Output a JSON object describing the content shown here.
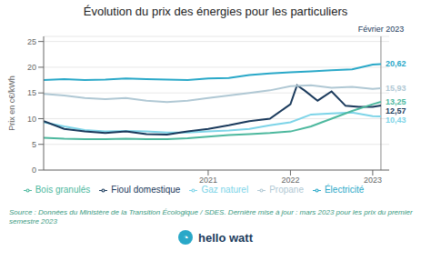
{
  "chart_data": {
    "type": "line",
    "title": "Évolution du prix des énergies pour les particuliers",
    "y_label": "Prix en c€/kWh",
    "source": "Source : Données du Ministère de la Transition Écologique / SDES. Dernière mise à jour : mars 2023 pour les prix du premier semestre 2023",
    "logo": [
      "◔",
      "hello watt"
    ],
    "annotations": [
      {
        "x": 2023.1,
        "label": "Février 2023"
      }
    ],
    "xlim": [
      2019.0,
      2023.2
    ],
    "xticks": [
      2021,
      2022,
      2023
    ],
    "ylim": [
      0,
      26
    ],
    "yticks": [
      0,
      5,
      10,
      15,
      20,
      25
    ],
    "grid": true,
    "legend": "bottom",
    "series": [
      {
        "name": "Gaz naturel",
        "color": "#7dd4e8",
        "x": [
          2019.0,
          2019.25,
          2019.5,
          2019.75,
          2020.0,
          2020.25,
          2020.5,
          2020.75,
          2021.0,
          2021.25,
          2021.5,
          2021.75,
          2022.0,
          2022.25,
          2022.5,
          2022.75,
          2023.0,
          2023.1
        ],
        "values": [
          9.3,
          8.5,
          7.8,
          7.5,
          7.6,
          7.5,
          7.3,
          7.3,
          7.5,
          7.7,
          8.0,
          8.7,
          9.3,
          10.8,
          11.0,
          11.2,
          10.5,
          10.43
        ],
        "value_labels": [
          null,
          null,
          null,
          null,
          null,
          null,
          null,
          null,
          null,
          null,
          null,
          null,
          null,
          null,
          null,
          null,
          null,
          "10,43"
        ]
      },
      {
        "name": "Électricité",
        "color": "#29a8c8",
        "x": [
          2019.0,
          2019.25,
          2019.5,
          2019.75,
          2020.0,
          2020.25,
          2020.5,
          2020.75,
          2021.0,
          2021.25,
          2021.5,
          2021.75,
          2022.0,
          2022.25,
          2022.5,
          2022.75,
          2023.0,
          2023.1
        ],
        "values": [
          17.5,
          17.7,
          17.5,
          17.6,
          17.8,
          17.7,
          17.6,
          17.5,
          17.8,
          17.9,
          18.5,
          18.8,
          19.0,
          19.2,
          19.4,
          19.6,
          20.5,
          20.62
        ],
        "value_labels": [
          null,
          null,
          null,
          null,
          null,
          null,
          null,
          null,
          null,
          null,
          null,
          null,
          null,
          null,
          null,
          null,
          null,
          "20,62"
        ]
      },
      {
        "name": "Fioul domestique",
        "color": "#1a3a5c",
        "x": [
          2019.0,
          2019.25,
          2019.5,
          2019.75,
          2020.0,
          2020.25,
          2020.5,
          2020.75,
          2021.0,
          2021.25,
          2021.5,
          2021.75,
          2022.0,
          2022.08,
          2022.17,
          2022.33,
          2022.5,
          2022.67,
          2022.83,
          2023.0,
          2023.1
        ],
        "values": [
          9.5,
          8.0,
          7.5,
          7.2,
          7.5,
          7.0,
          6.9,
          7.5,
          8.0,
          8.7,
          9.5,
          10.0,
          12.8,
          16.5,
          15.5,
          13.5,
          15.3,
          12.5,
          12.3,
          12.3,
          12.57
        ],
        "value_labels": [
          null,
          null,
          null,
          null,
          null,
          null,
          null,
          null,
          null,
          null,
          null,
          null,
          null,
          null,
          null,
          null,
          null,
          null,
          null,
          null,
          "12,57"
        ]
      },
      {
        "name": "Propane",
        "color": "#b0c8d4",
        "x": [
          2019.0,
          2019.25,
          2019.5,
          2019.75,
          2020.0,
          2020.25,
          2020.5,
          2020.75,
          2021.0,
          2021.25,
          2021.5,
          2021.75,
          2022.0,
          2022.25,
          2022.5,
          2022.75,
          2023.0,
          2023.1
        ],
        "values": [
          14.8,
          14.5,
          14.0,
          13.8,
          14.0,
          13.5,
          13.2,
          13.5,
          14.0,
          14.5,
          15.0,
          15.5,
          16.3,
          16.5,
          16.0,
          16.2,
          15.8,
          15.93
        ],
        "value_labels": [
          null,
          null,
          null,
          null,
          null,
          null,
          null,
          null,
          null,
          null,
          null,
          null,
          null,
          null,
          null,
          null,
          null,
          "15,93"
        ]
      },
      {
        "name": "Bois granulés",
        "color": "#4db89e",
        "x": [
          2019.0,
          2019.25,
          2019.5,
          2019.75,
          2020.0,
          2020.25,
          2020.5,
          2020.75,
          2021.0,
          2021.25,
          2021.5,
          2021.75,
          2022.0,
          2022.25,
          2022.5,
          2022.75,
          2023.0,
          2023.1
        ],
        "values": [
          6.3,
          6.1,
          6.0,
          6.0,
          6.1,
          6.0,
          6.0,
          6.2,
          6.5,
          6.8,
          7.0,
          7.2,
          7.5,
          8.5,
          10.0,
          11.5,
          12.8,
          13.25
        ],
        "value_labels": [
          null,
          null,
          null,
          null,
          null,
          null,
          null,
          null,
          null,
          null,
          null,
          null,
          null,
          null,
          null,
          null,
          null,
          "13,25"
        ]
      }
    ]
  }
}
